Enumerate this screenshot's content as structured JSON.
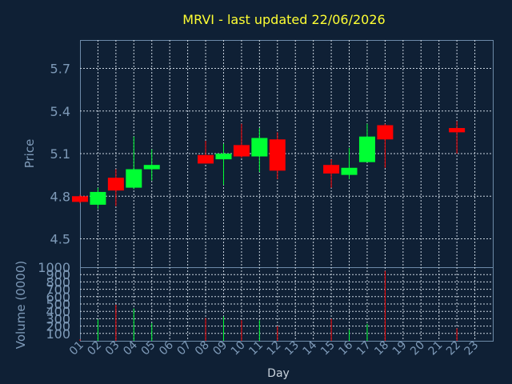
{
  "colors": {
    "background": "#0f2035",
    "title": "#ffff33",
    "axis_text": "#7e9ab8",
    "up": "#00ff33",
    "down": "#ff0000",
    "grid": "#c9d3de"
  },
  "chart_data": [
    {
      "type": "candlestick",
      "title": "MRVI - last updated 22/06/2026",
      "ylabel": "Price",
      "xlabel": "",
      "ylim": [
        4.3,
        5.9
      ],
      "yticks": [
        "4.5",
        "4.8",
        "5.1",
        "5.4",
        "5.7"
      ],
      "x_ticks": [
        "01",
        "02",
        "03",
        "04",
        "05",
        "06",
        "07",
        "08",
        "09",
        "10",
        "11",
        "12",
        "13",
        "14",
        "15",
        "16",
        "17",
        "18",
        "19",
        "20",
        "21",
        "22",
        "23"
      ],
      "grid": true,
      "candles": [
        {
          "day": "01",
          "open": 4.8,
          "close": 4.76,
          "high": 4.81,
          "low": 4.75
        },
        {
          "day": "02",
          "open": 4.74,
          "close": 4.83,
          "high": 4.86,
          "low": 4.71
        },
        {
          "day": "03",
          "open": 4.93,
          "close": 4.84,
          "high": 4.99,
          "low": 4.73
        },
        {
          "day": "04",
          "open": 4.86,
          "close": 4.99,
          "high": 5.22,
          "low": 4.85
        },
        {
          "day": "05",
          "open": 4.99,
          "close": 5.02,
          "high": 5.13,
          "low": 4.91
        },
        {
          "day": "08",
          "open": 5.09,
          "close": 5.03,
          "high": 5.19,
          "low": 5.03
        },
        {
          "day": "09",
          "open": 5.06,
          "close": 5.1,
          "high": 5.17,
          "low": 4.88
        },
        {
          "day": "10",
          "open": 5.16,
          "close": 5.08,
          "high": 5.31,
          "low": 5.07
        },
        {
          "day": "11",
          "open": 5.08,
          "close": 5.21,
          "high": 5.28,
          "low": 4.97
        },
        {
          "day": "12",
          "open": 5.2,
          "close": 4.98,
          "high": 5.25,
          "low": 4.92
        },
        {
          "day": "15",
          "open": 5.02,
          "close": 4.96,
          "high": 5.06,
          "low": 4.86
        },
        {
          "day": "16",
          "open": 4.95,
          "close": 5.0,
          "high": 5.14,
          "low": 4.92
        },
        {
          "day": "17",
          "open": 5.04,
          "close": 5.22,
          "high": 5.31,
          "low": 5.04
        },
        {
          "day": "18",
          "open": 5.3,
          "close": 5.2,
          "high": 5.31,
          "low": 5.0
        },
        {
          "day": "22",
          "open": 5.28,
          "close": 5.25,
          "high": 5.33,
          "low": 5.1
        }
      ]
    },
    {
      "type": "bar",
      "ylabel": "Volume (0000)",
      "xlabel": "Day",
      "ylim": [
        0,
        1000
      ],
      "yticks": [
        "100",
        "200",
        "300",
        "400",
        "500",
        "600",
        "700",
        "800",
        "900",
        "1000"
      ],
      "x_ticks": [
        "01",
        "02",
        "03",
        "04",
        "05",
        "06",
        "07",
        "08",
        "09",
        "10",
        "11",
        "12",
        "13",
        "14",
        "15",
        "16",
        "17",
        "18",
        "19",
        "20",
        "21",
        "22",
        "23"
      ],
      "grid": true,
      "bars": [
        {
          "day": "01",
          "value": 20,
          "direction": "down"
        },
        {
          "day": "02",
          "value": 290,
          "direction": "up"
        },
        {
          "day": "03",
          "value": 490,
          "direction": "down"
        },
        {
          "day": "04",
          "value": 440,
          "direction": "up"
        },
        {
          "day": "05",
          "value": 240,
          "direction": "up"
        },
        {
          "day": "08",
          "value": 310,
          "direction": "down"
        },
        {
          "day": "09",
          "value": 330,
          "direction": "up"
        },
        {
          "day": "10",
          "value": 280,
          "direction": "down"
        },
        {
          "day": "11",
          "value": 280,
          "direction": "up"
        },
        {
          "day": "12",
          "value": 200,
          "direction": "down"
        },
        {
          "day": "15",
          "value": 300,
          "direction": "down"
        },
        {
          "day": "16",
          "value": 150,
          "direction": "up"
        },
        {
          "day": "17",
          "value": 230,
          "direction": "up"
        },
        {
          "day": "18",
          "value": 950,
          "direction": "down"
        },
        {
          "day": "22",
          "value": 170,
          "direction": "down"
        }
      ]
    }
  ]
}
